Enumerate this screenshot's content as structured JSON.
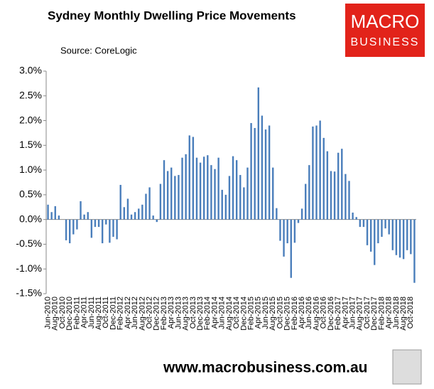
{
  "chart_data": {
    "type": "bar",
    "title": "Sydney Monthly Dwelling Price Movements",
    "subtitle": "Source: CoreLogic",
    "logo": [
      "MACRO",
      "BUSINESS"
    ],
    "footer": "www.macrobusiness.com.au",
    "color": "#4a7ebb",
    "categories": [
      "Jun-2010",
      null,
      "Aug-2010",
      null,
      "Oct-2010",
      null,
      "Dec-2010",
      null,
      "Feb-2011",
      null,
      "Apr-2011",
      null,
      "Jun-2011",
      null,
      "Aug-2011",
      null,
      "Oct-2011",
      null,
      "Dec-2011",
      null,
      "Feb-2012",
      null,
      "Apr-2012",
      null,
      "Jun-2012",
      null,
      "Aug-2012",
      null,
      "Oct-2012",
      null,
      "Dec-2012",
      null,
      "Feb-2013",
      null,
      "Apr-2013",
      null,
      "Jun-2013",
      null,
      "Aug-2013",
      null,
      "Oct-2013",
      null,
      "Dec-2013",
      null,
      "Feb-2014",
      null,
      "Apr-2014",
      null,
      "Jun-2014",
      null,
      "Aug-2014",
      null,
      "Oct-2014",
      null,
      "Dec-2014",
      null,
      "Feb-2015",
      null,
      "Apr-2015",
      null,
      "Jun-2015",
      null,
      "Aug-2015",
      null,
      "Oct-2015",
      null,
      "Dec-2015",
      null,
      "Feb-2016",
      null,
      "Apr-2016",
      null,
      "Jun-2016",
      null,
      "Aug-2016",
      null,
      "Oct-2016",
      null,
      "Dec-2016",
      null,
      "Feb-2017",
      null,
      "Apr-2017",
      null,
      "Jun-2017",
      null,
      "Aug-2017",
      null,
      "Oct-2017",
      null,
      "Dec-2017",
      null,
      "Feb-2018",
      null,
      "Apr-2018",
      null,
      "Jun-2018",
      null,
      "Aug-2018",
      null,
      "Oct-2018",
      null
    ],
    "values": [
      0.3,
      0.15,
      0.27,
      0.08,
      0.0,
      -0.42,
      -0.48,
      -0.3,
      -0.2,
      0.37,
      0.1,
      0.15,
      -0.37,
      -0.15,
      -0.15,
      -0.48,
      -0.1,
      -0.47,
      -0.35,
      -0.4,
      0.7,
      0.25,
      0.42,
      0.1,
      0.15,
      0.22,
      0.3,
      0.52,
      0.65,
      0.08,
      -0.05,
      0.72,
      1.2,
      0.98,
      1.05,
      0.88,
      0.9,
      1.25,
      1.32,
      1.7,
      1.67,
      1.25,
      1.15,
      1.27,
      1.3,
      1.1,
      1.02,
      1.25,
      0.6,
      0.5,
      0.88,
      1.28,
      1.2,
      0.9,
      0.65,
      1.05,
      1.95,
      1.85,
      2.67,
      2.1,
      1.82,
      1.9,
      1.05,
      0.23,
      -0.43,
      -0.75,
      -0.48,
      -1.18,
      -0.47,
      -0.07,
      0.22,
      0.72,
      1.1,
      1.88,
      1.9,
      2.0,
      1.65,
      1.38,
      0.98,
      0.97,
      1.35,
      1.43,
      0.92,
      0.78,
      0.14,
      0.05,
      -0.15,
      -0.15,
      -0.52,
      -0.65,
      -0.92,
      -0.48,
      -0.35,
      -0.18,
      -0.3,
      -0.62,
      -0.72,
      -0.77,
      -0.8,
      -0.62,
      -0.7,
      -1.28
    ],
    "ylim": [
      -1.5,
      3.0
    ],
    "yticks": [
      {
        "value": 3.0,
        "label": "3.0%"
      },
      {
        "value": 2.5,
        "label": "2.5%"
      },
      {
        "value": 2.0,
        "label": "2.0%"
      },
      {
        "value": 1.5,
        "label": "1.5%"
      },
      {
        "value": 1.0,
        "label": "1.0%"
      },
      {
        "value": 0.5,
        "label": "0.5%"
      },
      {
        "value": 0.0,
        "label": "0.0%"
      },
      {
        "value": -0.5,
        "label": "-0.5%"
      },
      {
        "value": -1.0,
        "label": "-1.0%"
      },
      {
        "value": -1.5,
        "label": "-1.5%"
      }
    ],
    "grid": false
  }
}
